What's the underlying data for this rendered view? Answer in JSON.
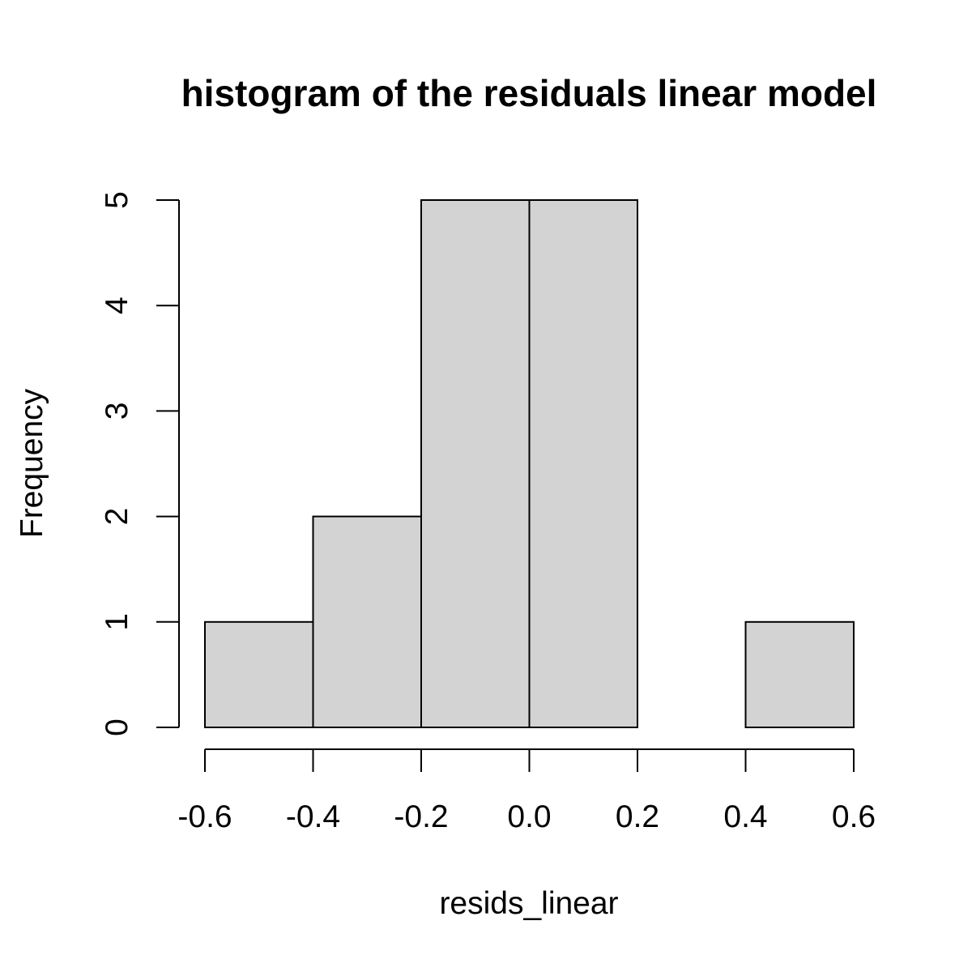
{
  "chart_data": {
    "type": "bar",
    "subtype": "histogram",
    "title": "histogram of the residuals linear model",
    "xlabel": "resids_linear",
    "ylabel": "Frequency",
    "bins": [
      {
        "start": -0.6,
        "end": -0.4,
        "value": 1
      },
      {
        "start": -0.4,
        "end": -0.2,
        "value": 2
      },
      {
        "start": -0.2,
        "end": 0.0,
        "value": 5
      },
      {
        "start": 0.0,
        "end": 0.2,
        "value": 5
      },
      {
        "start": 0.2,
        "end": 0.4,
        "value": 0
      },
      {
        "start": 0.4,
        "end": 0.6,
        "value": 1
      }
    ],
    "xlim": [
      -0.6,
      0.6
    ],
    "ylim": [
      0,
      5
    ],
    "x_ticks": [
      -0.6,
      -0.4,
      -0.2,
      0.0,
      0.2,
      0.4,
      0.6
    ],
    "x_tick_labels": [
      "-0.6",
      "-0.4",
      "-0.2",
      "0.0",
      "0.2",
      "0.4",
      "0.6"
    ],
    "y_ticks": [
      0,
      1,
      2,
      3,
      4,
      5
    ],
    "y_tick_labels": [
      "0",
      "1",
      "2",
      "3",
      "4",
      "5"
    ],
    "grid": false,
    "legend": "none",
    "bar_fill": "#d3d3d3",
    "bar_stroke": "#000000"
  }
}
